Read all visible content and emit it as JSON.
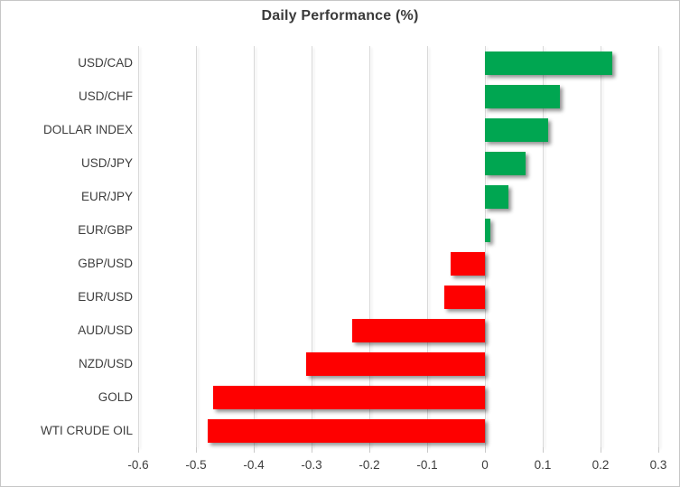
{
  "chart_data": {
    "type": "bar",
    "orientation": "horizontal",
    "title": "Daily Performance (%)",
    "categories": [
      "USD/CAD",
      "USD/CHF",
      "DOLLAR INDEX",
      "USD/JPY",
      "EUR/JPY",
      "EUR/GBP",
      "GBP/USD",
      "EUR/USD",
      "AUD/USD",
      "NZD/USD",
      "GOLD",
      "WTI CRUDE OIL"
    ],
    "values": [
      0.22,
      0.13,
      0.11,
      0.07,
      0.04,
      0.01,
      -0.06,
      -0.07,
      -0.23,
      -0.31,
      -0.47,
      -0.48
    ],
    "xlabel": "",
    "ylabel": "",
    "xlim": [
      -0.6,
      0.3
    ],
    "x_ticks": [
      {
        "value": -0.6,
        "label": "-0.6"
      },
      {
        "value": -0.5,
        "label": "-0.5"
      },
      {
        "value": -0.4,
        "label": "-0.4"
      },
      {
        "value": -0.3,
        "label": "-0.3"
      },
      {
        "value": -0.2,
        "label": "-0.2"
      },
      {
        "value": -0.1,
        "label": "-0.1"
      },
      {
        "value": 0,
        "label": "0"
      },
      {
        "value": 0.1,
        "label": "0.1"
      },
      {
        "value": 0.2,
        "label": "0.2"
      },
      {
        "value": 0.3,
        "label": "0.3"
      }
    ],
    "grid": true,
    "legend": "none",
    "colors": {
      "positive": "#00a651",
      "negative": "#fe0000"
    }
  }
}
